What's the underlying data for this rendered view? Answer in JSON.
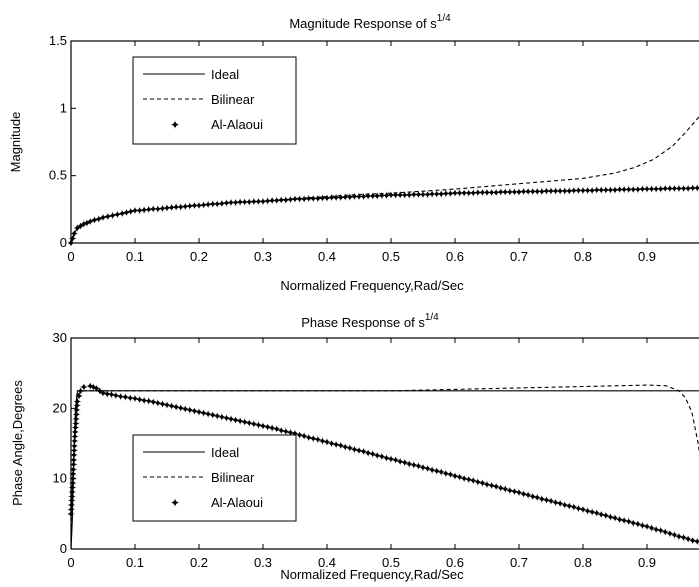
{
  "chart_data": [
    {
      "type": "line",
      "title": "Magnitude Response of s",
      "title_sup": "1/4",
      "xlabel": "Normalized Frequency,Rad/Sec",
      "ylabel": "Magnitude",
      "xlim": [
        0,
        1
      ],
      "ylim": [
        0,
        1.5
      ],
      "xticks": [
        0,
        0.1,
        0.2,
        0.3,
        0.4,
        0.5,
        0.6,
        0.7,
        0.8,
        0.9
      ],
      "xtick_labels": [
        "0",
        "0.1",
        "0.2",
        "0.3",
        "0.4",
        "0.5",
        "0.6",
        "0.7",
        "0.8",
        "0.9"
      ],
      "yticks": [
        0,
        0.5,
        1,
        1.5
      ],
      "ytick_labels": [
        "0",
        "0.5",
        "1",
        "1.5"
      ],
      "legend_placement": "top-left",
      "series": [
        {
          "name": "Ideal",
          "style": "solid",
          "x": [
            0,
            0.005,
            0.01,
            0.02,
            0.03,
            0.05,
            0.08,
            0.1,
            0.15,
            0.2,
            0.25,
            0.3,
            0.35,
            0.4,
            0.45,
            0.5,
            0.55,
            0.6,
            0.65,
            0.7,
            0.75,
            0.8,
            0.85,
            0.9,
            0.95,
            1.0
          ],
          "values": [
            0.0,
            0.07,
            0.11,
            0.14,
            0.16,
            0.19,
            0.22,
            0.24,
            0.26,
            0.28,
            0.3,
            0.31,
            0.325,
            0.335,
            0.345,
            0.355,
            0.36,
            0.37,
            0.375,
            0.38,
            0.385,
            0.39,
            0.395,
            0.4,
            0.405,
            0.41
          ]
        },
        {
          "name": "Bilinear",
          "style": "dashed",
          "x": [
            0,
            0.005,
            0.01,
            0.02,
            0.03,
            0.05,
            0.08,
            0.1,
            0.15,
            0.2,
            0.25,
            0.3,
            0.35,
            0.4,
            0.45,
            0.5,
            0.55,
            0.6,
            0.65,
            0.7,
            0.75,
            0.8,
            0.85,
            0.88,
            0.91,
            0.94,
            0.96,
            0.98,
            1.0
          ],
          "values": [
            0.0,
            0.07,
            0.11,
            0.14,
            0.16,
            0.19,
            0.22,
            0.24,
            0.26,
            0.28,
            0.3,
            0.31,
            0.33,
            0.345,
            0.36,
            0.37,
            0.385,
            0.4,
            0.42,
            0.44,
            0.46,
            0.48,
            0.52,
            0.56,
            0.62,
            0.72,
            0.82,
            0.93,
            1.0
          ]
        },
        {
          "name": "Al-Alaoui",
          "style": "markers",
          "x": [
            0,
            0.005,
            0.01,
            0.02,
            0.03,
            0.05,
            0.08,
            0.1,
            0.15,
            0.2,
            0.25,
            0.3,
            0.35,
            0.4,
            0.45,
            0.5,
            0.55,
            0.6,
            0.65,
            0.7,
            0.75,
            0.8,
            0.85,
            0.9,
            0.95,
            1.0
          ],
          "values": [
            0.0,
            0.07,
            0.11,
            0.14,
            0.16,
            0.19,
            0.22,
            0.24,
            0.26,
            0.28,
            0.3,
            0.31,
            0.325,
            0.335,
            0.345,
            0.355,
            0.36,
            0.37,
            0.375,
            0.38,
            0.385,
            0.39,
            0.395,
            0.4,
            0.405,
            0.41
          ]
        }
      ]
    },
    {
      "type": "line",
      "title": "Phase Response of s",
      "title_sup": "1/4",
      "xlabel": "Normalized Frequency,Rad/Sec",
      "ylabel": "Phase Angle,Degrees",
      "xlim": [
        0,
        1
      ],
      "ylim": [
        0,
        30
      ],
      "xticks": [
        0,
        0.1,
        0.2,
        0.3,
        0.4,
        0.5,
        0.6,
        0.7,
        0.8,
        0.9
      ],
      "xtick_labels": [
        "0",
        "0.1",
        "0.2",
        "0.3",
        "0.4",
        "0.5",
        "0.6",
        "0.7",
        "0.8",
        "0.9"
      ],
      "yticks": [
        0,
        10,
        20,
        30
      ],
      "ytick_labels": [
        "0",
        "10",
        "20",
        "30"
      ],
      "legend_placement": "bottom-left",
      "series": [
        {
          "name": "Ideal",
          "style": "solid",
          "x": [
            0,
            0.002,
            0.004,
            0.007,
            0.01,
            1.0
          ],
          "values": [
            0,
            4,
            12,
            20,
            22.5,
            22.5
          ]
        },
        {
          "name": "Bilinear",
          "style": "dashed",
          "x": [
            0,
            0.002,
            0.005,
            0.01,
            0.02,
            0.5,
            0.9,
            0.93,
            0.95,
            0.96,
            0.97,
            0.98,
            0.99,
            1.0
          ],
          "values": [
            0,
            5,
            15,
            22,
            22.5,
            22.5,
            23.3,
            23.2,
            22.5,
            21.5,
            19.5,
            15,
            8,
            0
          ]
        },
        {
          "name": "Al-Alaoui",
          "style": "markers",
          "x": [
            0,
            0.003,
            0.006,
            0.01,
            0.015,
            0.02,
            0.03,
            0.04,
            0.05,
            0.07,
            0.1,
            0.15,
            0.2,
            0.25,
            0.3,
            0.35,
            0.4,
            0.45,
            0.5,
            0.55,
            0.6,
            0.65,
            0.7,
            0.75,
            0.8,
            0.85,
            0.9,
            0.95,
            1.0
          ],
          "values": [
            5,
            10,
            16,
            21,
            22.5,
            23,
            23.2,
            22.8,
            22.2,
            21.8,
            21.4,
            20.5,
            19.5,
            18.5,
            17.5,
            16.4,
            15.2,
            14,
            12.8,
            11.6,
            10.4,
            9.2,
            8,
            6.8,
            5.6,
            4.4,
            3.2,
            1.8,
            0.5
          ]
        }
      ]
    }
  ]
}
